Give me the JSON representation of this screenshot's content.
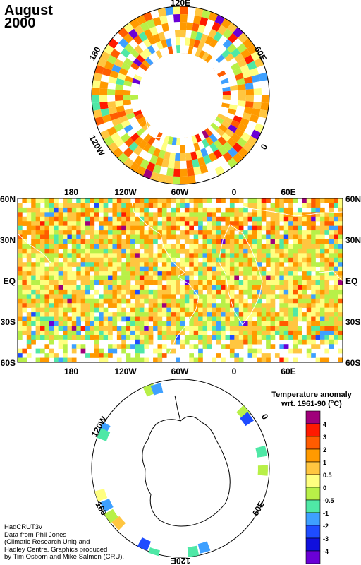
{
  "title": {
    "month": "August",
    "year": "2000"
  },
  "credits": [
    "HadCRUT3v",
    "Data from Phil Jones",
    "(Climatic Research Unit) and",
    "Hadley Centre.  Graphics produced",
    "by Tim Osborn and Mike Salmon (CRU)."
  ],
  "north_polar": {
    "labels": [
      "120E",
      "60E",
      "0",
      "120W",
      "180"
    ]
  },
  "south_polar": {
    "labels": [
      "120W",
      "0",
      "180",
      "60E",
      "120E"
    ]
  },
  "map": {
    "top_labels": [
      "180",
      "120W",
      "60W",
      "0",
      "60E"
    ],
    "bottom_labels": [
      "180",
      "120W",
      "60W",
      "0",
      "60E"
    ],
    "left_labels": [
      "60N",
      "30N",
      "EQ",
      "30S",
      "60S"
    ],
    "right_labels": [
      "60N",
      "30N",
      "EQ",
      "30S",
      "60S"
    ]
  },
  "legend": {
    "title_line1": "Temperature anomaly",
    "title_line2": "wrt. 1961-90  (°C)",
    "labels": [
      "4",
      "3",
      "2",
      "1",
      "0.5",
      "0",
      "-0.5",
      "-1",
      "-2",
      "-3",
      "-4"
    ],
    "colors": [
      "#a0007a",
      "#ff1a00",
      "#ff5c00",
      "#ff9a00",
      "#ffc640",
      "#ffff80",
      "#b8f048",
      "#4fe8a6",
      "#3ea0ff",
      "#1e4cff",
      "#1010dd",
      "#6a00d6"
    ]
  }
}
